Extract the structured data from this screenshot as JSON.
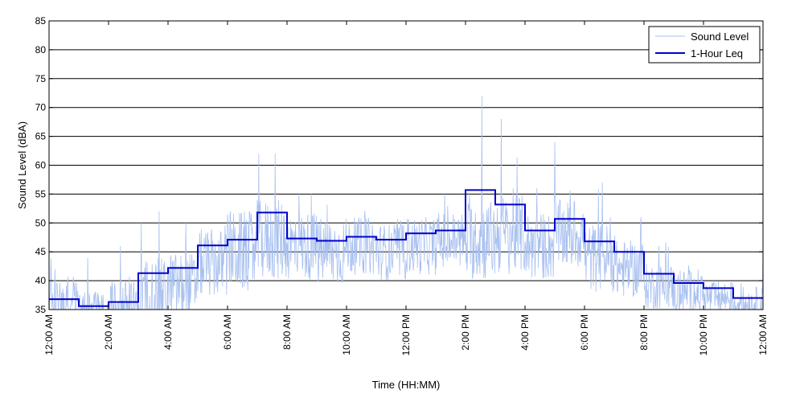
{
  "chart_data": {
    "type": "line",
    "title": "",
    "xlabel": "Time (HH:MM)",
    "ylabel": "Sound Level (dBA)",
    "xlim": [
      0,
      24
    ],
    "ylim": [
      35,
      85
    ],
    "x_ticks": [
      0,
      2,
      4,
      6,
      8,
      10,
      12,
      14,
      16,
      18,
      20,
      22,
      24
    ],
    "x_tick_labels": [
      "12:00 AM",
      "2:00 AM",
      "4:00 AM",
      "6:00 AM",
      "8:00 AM",
      "10:00 AM",
      "12:00 PM",
      "2:00 PM",
      "4:00 PM",
      "6:00 PM",
      "8:00 PM",
      "10:00 PM",
      "12:00 AM"
    ],
    "y_ticks": [
      35,
      40,
      45,
      50,
      55,
      60,
      65,
      70,
      75,
      80,
      85
    ],
    "y_tick_labels": [
      "35",
      "40",
      "45",
      "50",
      "55",
      "60",
      "65",
      "70",
      "75",
      "80",
      "85"
    ],
    "grid": "horizontal",
    "legend_position": "top-right",
    "series": [
      {
        "name": "Sound Level",
        "color": "#a8c0f0",
        "kind": "line",
        "hourly_mean": [
          36,
          35,
          36,
          38,
          39,
          43,
          45,
          47,
          46,
          45,
          46,
          45,
          46,
          47,
          47,
          48,
          46,
          48,
          44,
          42,
          39,
          38,
          37,
          36
        ],
        "hourly_spread": [
          4,
          3,
          4,
          6,
          6,
          6,
          7,
          7,
          6,
          6,
          5,
          5,
          5,
          5,
          7,
          7,
          6,
          6,
          6,
          5,
          4,
          4,
          3,
          3
        ],
        "peaks": [
          {
            "x": 0.2,
            "y": 42
          },
          {
            "x": 1.3,
            "y": 44
          },
          {
            "x": 2.4,
            "y": 46
          },
          {
            "x": 3.1,
            "y": 50
          },
          {
            "x": 3.7,
            "y": 52
          },
          {
            "x": 4.6,
            "y": 50
          },
          {
            "x": 6.1,
            "y": 52
          },
          {
            "x": 7.05,
            "y": 62
          },
          {
            "x": 7.6,
            "y": 62
          },
          {
            "x": 8.4,
            "y": 55
          },
          {
            "x": 13.3,
            "y": 55
          },
          {
            "x": 14.55,
            "y": 72
          },
          {
            "x": 15.2,
            "y": 68
          },
          {
            "x": 15.6,
            "y": 56
          },
          {
            "x": 16.4,
            "y": 56
          },
          {
            "x": 17.0,
            "y": 64
          },
          {
            "x": 18.6,
            "y": 57
          },
          {
            "x": 19.9,
            "y": 51
          },
          {
            "x": 20.5,
            "y": 46
          },
          {
            "x": 24.0,
            "y": 46
          }
        ]
      },
      {
        "name": "1-Hour Leq",
        "color": "#0000cc",
        "kind": "step",
        "hours": [
          0,
          1,
          2,
          3,
          4,
          5,
          6,
          7,
          8,
          9,
          10,
          11,
          12,
          13,
          14,
          15,
          16,
          17,
          18,
          19,
          20,
          21,
          22,
          23
        ],
        "values": [
          36.8,
          35.6,
          36.3,
          41.3,
          42.2,
          46.1,
          47.1,
          51.8,
          47.3,
          46.9,
          47.6,
          47.1,
          48.2,
          48.7,
          55.7,
          53.2,
          48.7,
          50.7,
          46.8,
          45.0,
          41.2,
          39.6,
          38.7,
          37.0
        ]
      }
    ]
  }
}
